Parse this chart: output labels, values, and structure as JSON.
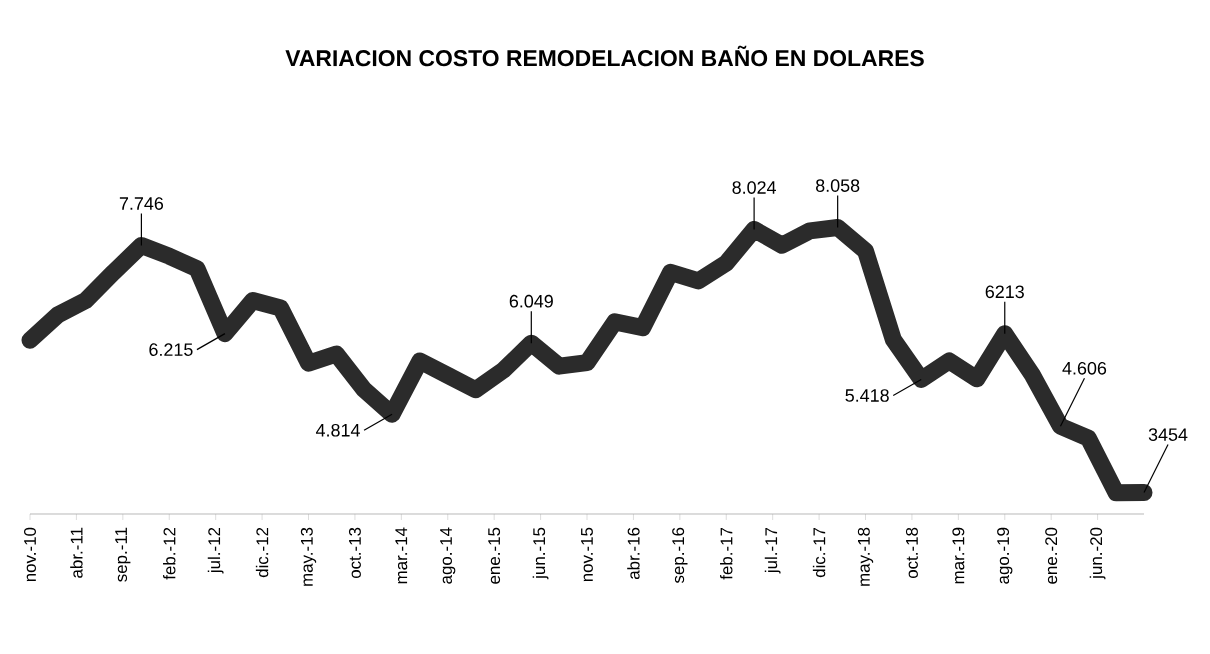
{
  "chart_data": {
    "type": "line",
    "title": "VARIACION COSTO REMODELACION BAÑO EN DOLARES",
    "x": [
      "2010-11",
      "2011-02",
      "2011-05",
      "2011-08",
      "2011-11",
      "2012-02",
      "2012-05",
      "2012-08",
      "2012-11",
      "2013-02",
      "2013-05",
      "2013-08",
      "2013-11",
      "2014-02",
      "2014-05",
      "2014-08",
      "2014-11",
      "2015-02",
      "2015-05",
      "2015-08",
      "2015-11",
      "2016-02",
      "2016-05",
      "2016-08",
      "2016-11",
      "2017-02",
      "2017-05",
      "2017-08",
      "2017-11",
      "2018-02",
      "2018-05",
      "2018-08",
      "2018-11",
      "2019-02",
      "2019-05",
      "2019-08",
      "2019-11",
      "2020-02",
      "2020-05",
      "2020-08",
      "2020-11"
    ],
    "series": [
      {
        "color": "#2b2b2b",
        "values": [
          6100,
          6540,
          6790,
          7280,
          7746,
          7560,
          7340,
          6215,
          6790,
          6660,
          5700,
          5860,
          5240,
          4814,
          5740,
          5490,
          5240,
          5580,
          6049,
          5650,
          5710,
          6420,
          6320,
          7280,
          7130,
          7440,
          8024,
          7750,
          8000,
          8058,
          7650,
          6110,
          5418,
          5740,
          5430,
          6213,
          5490,
          4606,
          4400,
          3450,
          3454
        ],
        "value_labels": [
          null,
          null,
          null,
          null,
          "7.746",
          null,
          null,
          "6.215",
          null,
          null,
          null,
          null,
          null,
          "4.814",
          null,
          null,
          null,
          null,
          "6.049",
          null,
          null,
          null,
          null,
          null,
          null,
          null,
          "8.024",
          null,
          null,
          "8.058",
          null,
          null,
          "5.418",
          null,
          null,
          "6213",
          null,
          "4.606",
          null,
          null,
          "3454"
        ]
      }
    ],
    "xlim": [
      "2010-11",
      "2020-11"
    ],
    "xticks": [
      {
        "value": "2010-11",
        "label": "nov.-10"
      },
      {
        "value": "2011-04",
        "label": "abr.-11"
      },
      {
        "value": "2011-09",
        "label": "sep.-11"
      },
      {
        "value": "2012-02",
        "label": "feb.-12"
      },
      {
        "value": "2012-07",
        "label": "jul.-12"
      },
      {
        "value": "2012-12",
        "label": "dic.-12"
      },
      {
        "value": "2013-05",
        "label": "may.-13"
      },
      {
        "value": "2013-10",
        "label": "oct.-13"
      },
      {
        "value": "2014-03",
        "label": "mar.-14"
      },
      {
        "value": "2014-08",
        "label": "ago.-14"
      },
      {
        "value": "2015-01",
        "label": "ene.-15"
      },
      {
        "value": "2015-06",
        "label": "jun.-15"
      },
      {
        "value": "2015-11",
        "label": "nov.-15"
      },
      {
        "value": "2016-04",
        "label": "abr.-16"
      },
      {
        "value": "2016-09",
        "label": "sep.-16"
      },
      {
        "value": "2017-02",
        "label": "feb.-17"
      },
      {
        "value": "2017-07",
        "label": "jul.-17"
      },
      {
        "value": "2017-12",
        "label": "dic.-17"
      },
      {
        "value": "2018-05",
        "label": "may.-18"
      },
      {
        "value": "2018-10",
        "label": "oct.-18"
      },
      {
        "value": "2019-03",
        "label": "mar.-19"
      },
      {
        "value": "2019-08",
        "label": "ago.-19"
      },
      {
        "value": "2020-01",
        "label": "ene.-20"
      },
      {
        "value": "2020-06",
        "label": "jun.-20"
      }
    ],
    "tick_labels": "x"
  }
}
